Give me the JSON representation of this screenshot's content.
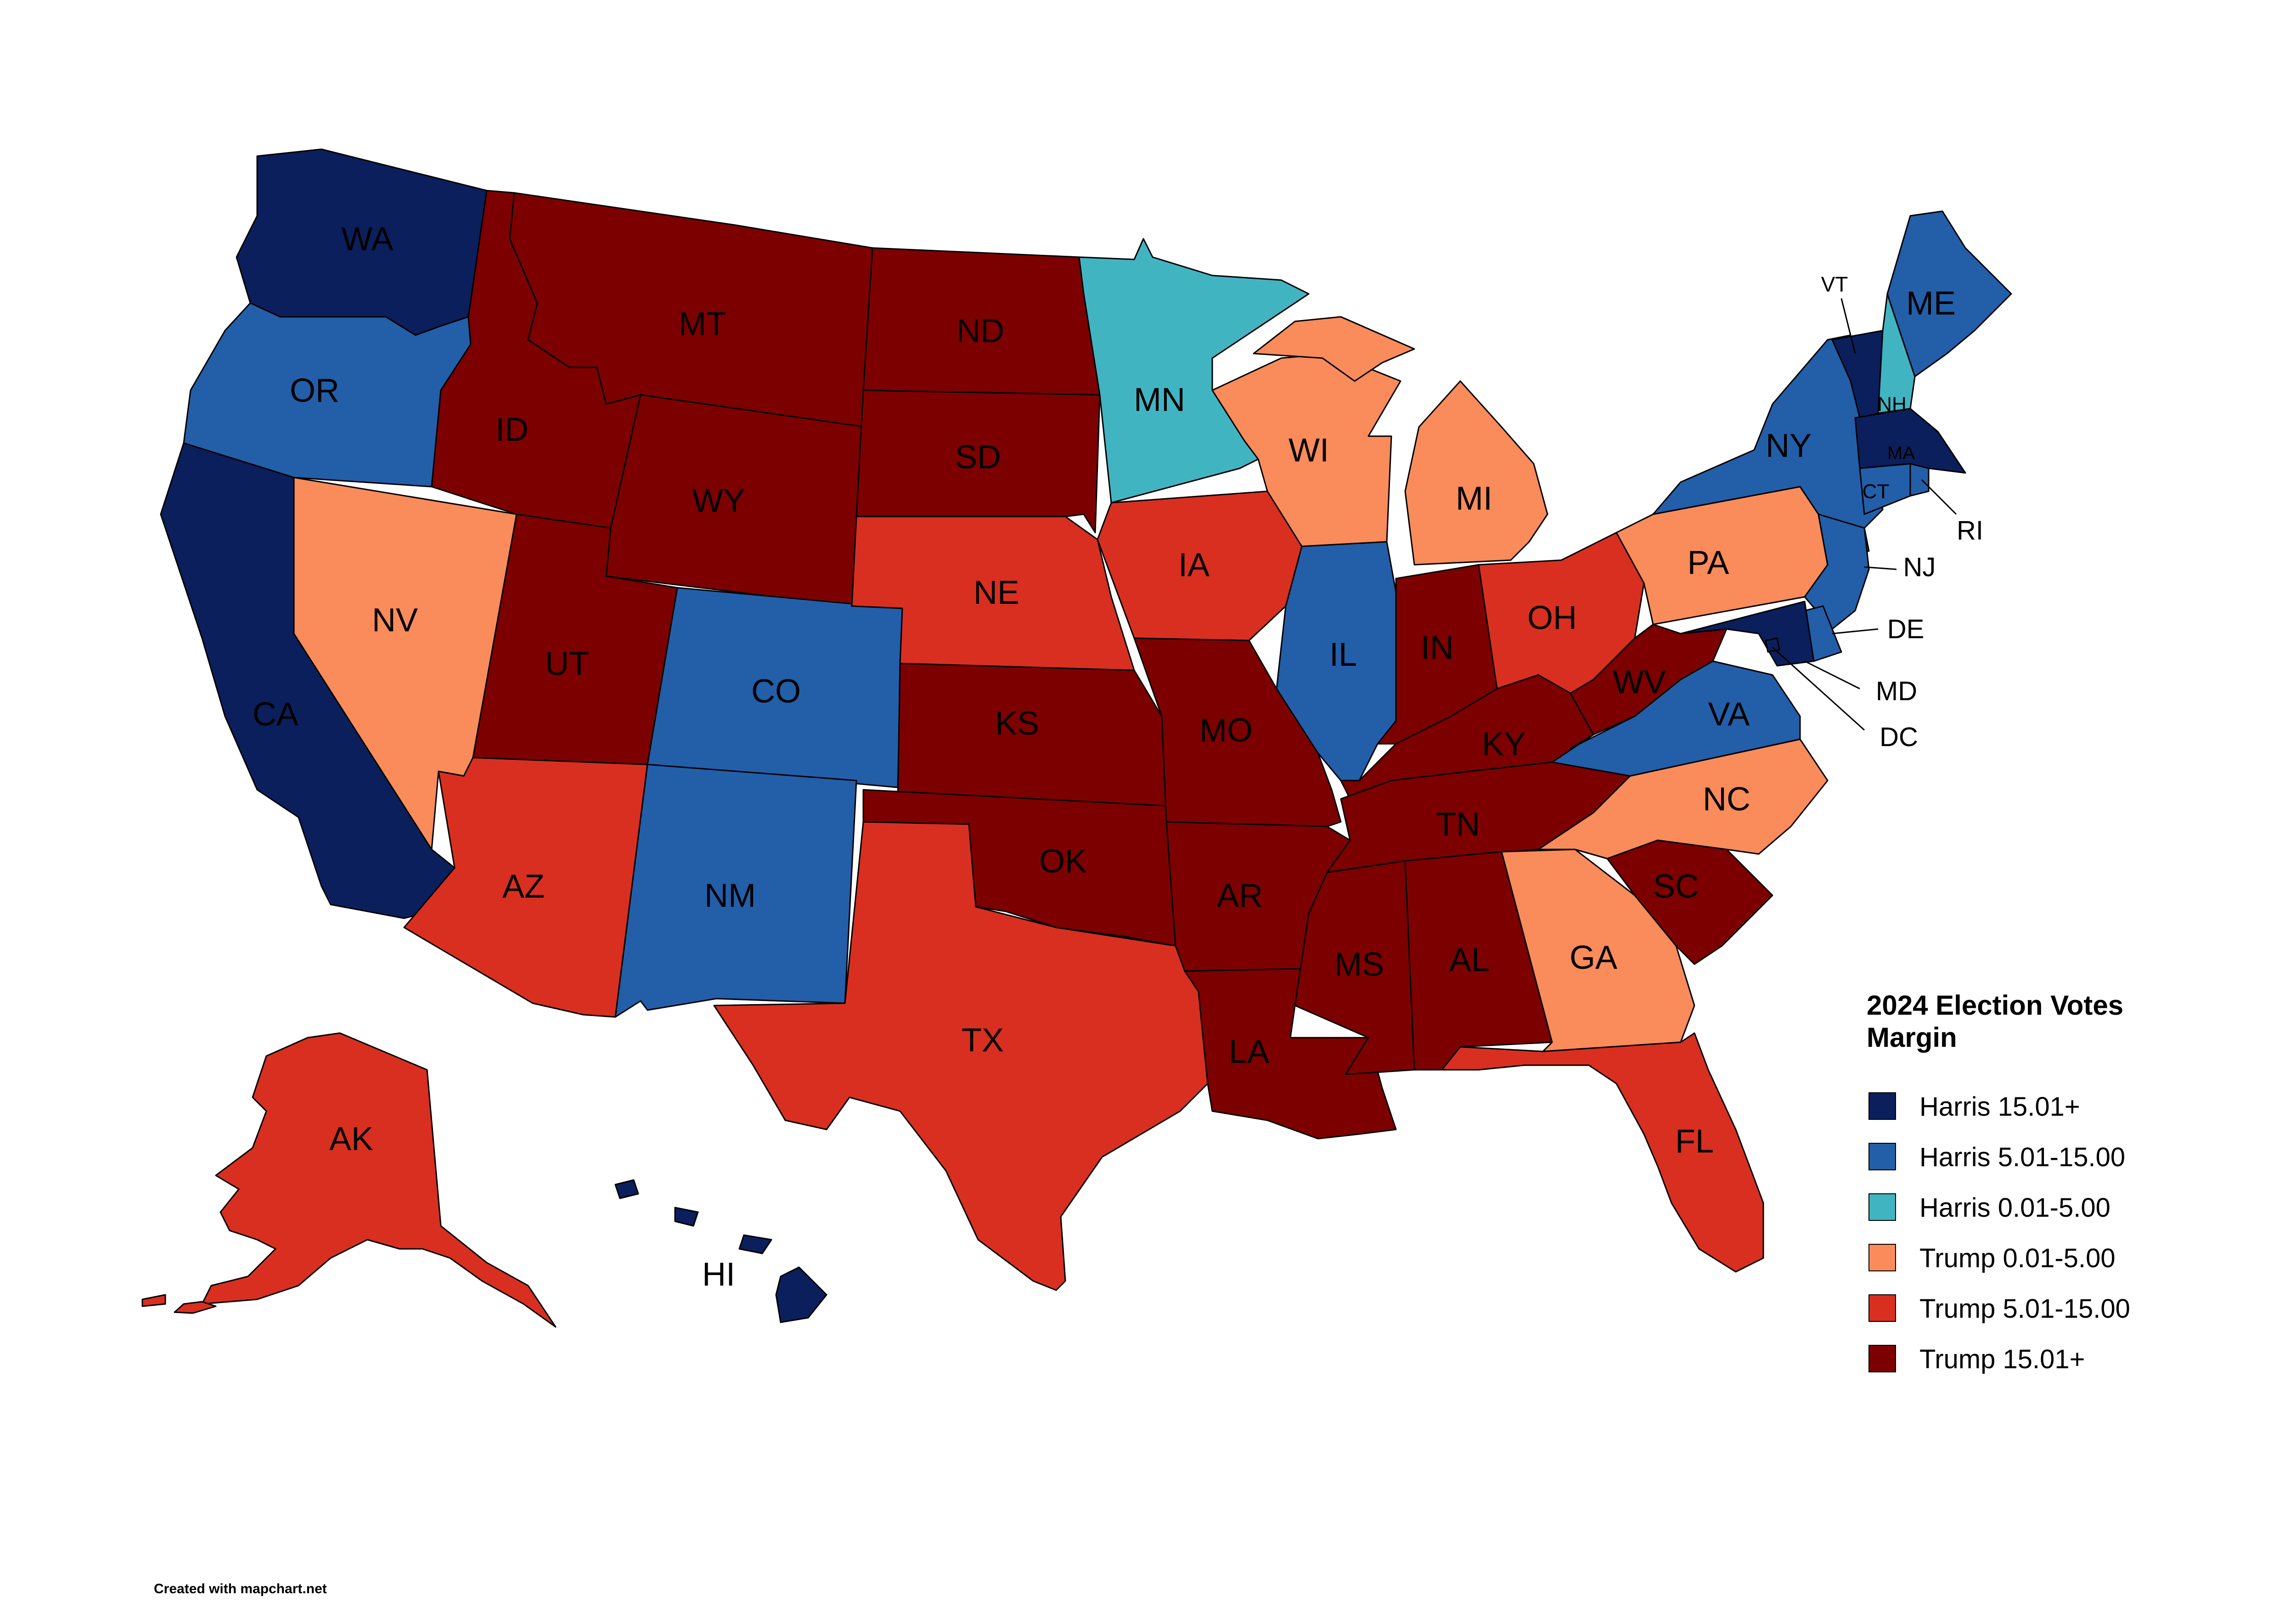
{
  "colors": {
    "harris_15": "#0b1f5c",
    "harris_5_15": "#235ea9",
    "harris_0_5": "#41b4c2",
    "trump_0_5": "#fa8b5b",
    "trump_5_15": "#d92f20",
    "trump_15": "#7d0000"
  },
  "legend": {
    "title_line1": "2024 Election Votes",
    "title_line2": "Margin",
    "items": [
      {
        "label": "Harris 15.01+",
        "color": "#0b1f5c"
      },
      {
        "label": "Harris 5.01-15.00",
        "color": "#235ea9"
      },
      {
        "label": "Harris 0.01-5.00",
        "color": "#41b4c2"
      },
      {
        "label": "Trump 0.01-5.00",
        "color": "#fa8b5b"
      },
      {
        "label": "Trump 5.01-15.00",
        "color": "#d92f20"
      },
      {
        "label": "Trump 15.01+",
        "color": "#7d0000"
      }
    ]
  },
  "credit": "Created with mapchart.net",
  "states": [
    {
      "abbr": "WA",
      "category": "harris_15"
    },
    {
      "abbr": "OR",
      "category": "harris_5_15"
    },
    {
      "abbr": "CA",
      "category": "harris_15"
    },
    {
      "abbr": "NV",
      "category": "trump_0_5"
    },
    {
      "abbr": "ID",
      "category": "trump_15"
    },
    {
      "abbr": "MT",
      "category": "trump_15"
    },
    {
      "abbr": "WY",
      "category": "trump_15"
    },
    {
      "abbr": "UT",
      "category": "trump_15"
    },
    {
      "abbr": "AZ",
      "category": "trump_5_15"
    },
    {
      "abbr": "CO",
      "category": "harris_5_15"
    },
    {
      "abbr": "NM",
      "category": "harris_5_15"
    },
    {
      "abbr": "ND",
      "category": "trump_15"
    },
    {
      "abbr": "SD",
      "category": "trump_15"
    },
    {
      "abbr": "NE",
      "category": "trump_5_15"
    },
    {
      "abbr": "KS",
      "category": "trump_15"
    },
    {
      "abbr": "OK",
      "category": "trump_15"
    },
    {
      "abbr": "TX",
      "category": "trump_5_15"
    },
    {
      "abbr": "MN",
      "category": "harris_0_5"
    },
    {
      "abbr": "IA",
      "category": "trump_5_15"
    },
    {
      "abbr": "MO",
      "category": "trump_15"
    },
    {
      "abbr": "AR",
      "category": "trump_15"
    },
    {
      "abbr": "LA",
      "category": "trump_15"
    },
    {
      "abbr": "WI",
      "category": "trump_0_5"
    },
    {
      "abbr": "IL",
      "category": "harris_5_15"
    },
    {
      "abbr": "MI",
      "category": "trump_0_5"
    },
    {
      "abbr": "IN",
      "category": "trump_15"
    },
    {
      "abbr": "OH",
      "category": "trump_5_15"
    },
    {
      "abbr": "KY",
      "category": "trump_15"
    },
    {
      "abbr": "TN",
      "category": "trump_15"
    },
    {
      "abbr": "MS",
      "category": "trump_15"
    },
    {
      "abbr": "AL",
      "category": "trump_15"
    },
    {
      "abbr": "GA",
      "category": "trump_0_5"
    },
    {
      "abbr": "FL",
      "category": "trump_5_15"
    },
    {
      "abbr": "SC",
      "category": "trump_15"
    },
    {
      "abbr": "NC",
      "category": "trump_0_5"
    },
    {
      "abbr": "VA",
      "category": "harris_5_15"
    },
    {
      "abbr": "WV",
      "category": "trump_15"
    },
    {
      "abbr": "PA",
      "category": "trump_0_5"
    },
    {
      "abbr": "NY",
      "category": "harris_5_15"
    },
    {
      "abbr": "VT",
      "category": "harris_15"
    },
    {
      "abbr": "NH",
      "category": "harris_0_5"
    },
    {
      "abbr": "ME",
      "category": "harris_5_15"
    },
    {
      "abbr": "MA",
      "category": "harris_15"
    },
    {
      "abbr": "RI",
      "category": "harris_5_15"
    },
    {
      "abbr": "CT",
      "category": "harris_5_15"
    },
    {
      "abbr": "NJ",
      "category": "harris_5_15"
    },
    {
      "abbr": "DE",
      "category": "harris_5_15"
    },
    {
      "abbr": "MD",
      "category": "harris_15"
    },
    {
      "abbr": "DC",
      "category": "harris_15"
    },
    {
      "abbr": "AK",
      "category": "trump_5_15"
    },
    {
      "abbr": "HI",
      "category": "harris_15"
    }
  ]
}
